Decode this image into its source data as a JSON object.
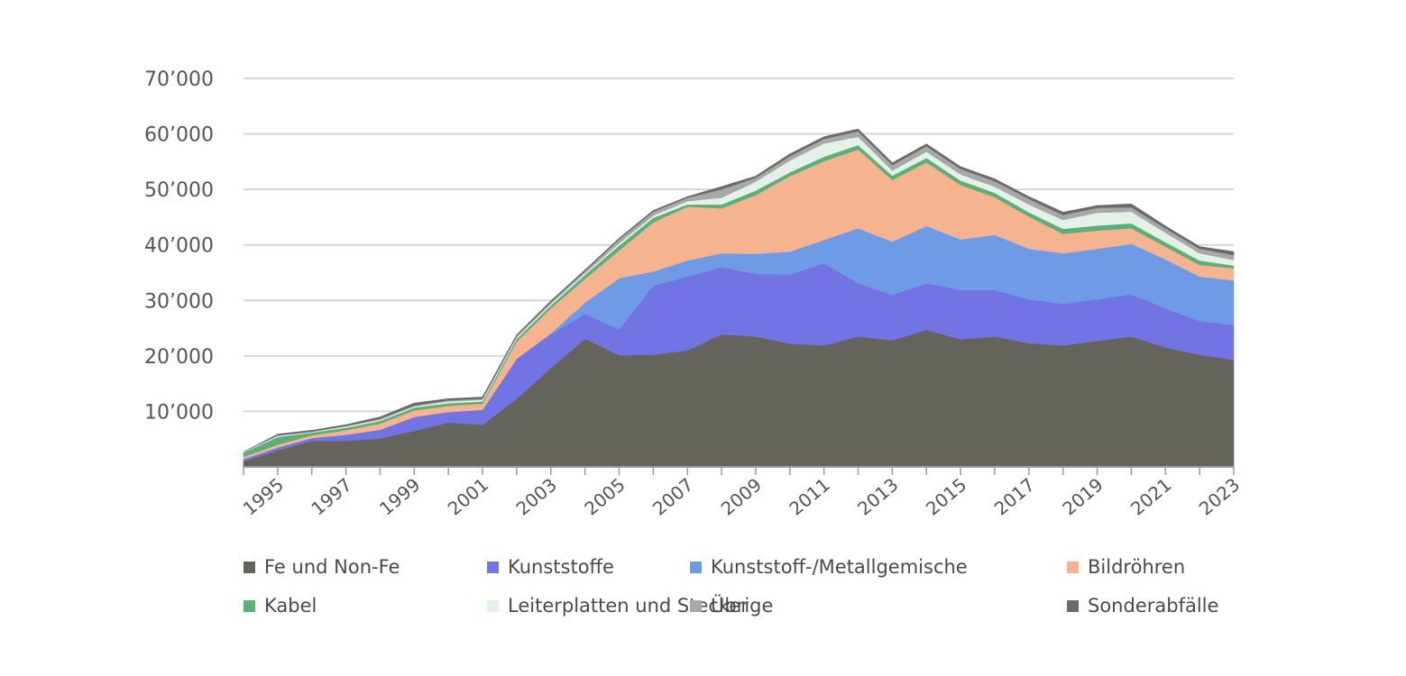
{
  "chart_data": {
    "type": "area",
    "stacked": true,
    "title": "",
    "xlabel": "",
    "ylabel": "",
    "ylim": [
      0,
      70000
    ],
    "y_ticks": [
      10000,
      20000,
      30000,
      40000,
      50000,
      60000,
      70000
    ],
    "y_tick_labels": [
      "10’000",
      "20’000",
      "30’000",
      "40’000",
      "50’000",
      "60’000",
      "70’000"
    ],
    "x_tick_labels": [
      "1995",
      "1997",
      "1999",
      "2001",
      "2003",
      "2005",
      "2007",
      "2009",
      "2011",
      "2013",
      "2015",
      "2017",
      "2019",
      "2021",
      "2023"
    ],
    "grid": "horizontal",
    "legend_position": "bottom",
    "x": [
      1994,
      1995,
      1996,
      1997,
      1998,
      1999,
      2000,
      2001,
      2002,
      2003,
      2004,
      2005,
      2006,
      2007,
      2008,
      2009,
      2010,
      2011,
      2012,
      2013,
      2014,
      2015,
      2016,
      2017,
      2018,
      2019,
      2020,
      2021,
      2022,
      2023
    ],
    "series": [
      {
        "name": "Fe und Non-Fe",
        "color": "#64635c",
        "values": [
          1000,
          3000,
          4700,
          4700,
          5100,
          6500,
          8000,
          7600,
          12300,
          17800,
          23100,
          20100,
          20200,
          21000,
          23900,
          23500,
          22200,
          21900,
          23500,
          22800,
          24700,
          23000,
          23500,
          22300,
          21900,
          22700,
          23500,
          21500,
          20200,
          19300
        ]
      },
      {
        "name": "Kunststoffe",
        "color": "#7274e4",
        "values": [
          400,
          500,
          500,
          1100,
          1600,
          2500,
          1900,
          2700,
          7200,
          6100,
          4500,
          4700,
          12500,
          13300,
          12100,
          11300,
          12500,
          14800,
          9600,
          8200,
          8400,
          8900,
          8400,
          7900,
          7500,
          7500,
          7600,
          7100,
          6100,
          6300
        ]
      },
      {
        "name": "Kunststoff-/Metallgemische",
        "color": "#6f9be6",
        "values": [
          0,
          0,
          0,
          0,
          0,
          0,
          0,
          0,
          0,
          200,
          2000,
          9200,
          2500,
          2900,
          2500,
          3600,
          4100,
          4200,
          9900,
          9600,
          10300,
          9100,
          9900,
          9100,
          9100,
          9100,
          9100,
          8800,
          8000,
          8000
        ]
      },
      {
        "name": "Bildröhren",
        "color": "#f5b38f",
        "values": [
          400,
          500,
          500,
          800,
          1100,
          1200,
          1100,
          1100,
          3100,
          4500,
          4300,
          5000,
          8900,
          9700,
          8100,
          10600,
          13600,
          14200,
          14200,
          11100,
          11500,
          9800,
          6800,
          5800,
          3500,
          3300,
          2800,
          2300,
          2100,
          2200
        ]
      },
      {
        "name": "Kabel",
        "color": "#5bb07a",
        "values": [
          800,
          1400,
          500,
          500,
          500,
          500,
          500,
          400,
          500,
          500,
          700,
          900,
          800,
          400,
          700,
          800,
          700,
          800,
          800,
          800,
          800,
          800,
          800,
          800,
          900,
          900,
          900,
          800,
          800,
          500
        ]
      },
      {
        "name": "Leiterplatten und Stecker",
        "color": "#e3f1e7",
        "values": [
          100,
          200,
          100,
          200,
          200,
          200,
          300,
          300,
          300,
          300,
          300,
          400,
          400,
          600,
          1200,
          1600,
          2100,
          2400,
          1500,
          900,
          1100,
          1100,
          1100,
          1400,
          1600,
          2300,
          2100,
          1700,
          1300,
          1000
        ]
      },
      {
        "name": "Übrige",
        "color": "#a8a8a8",
        "values": [
          0,
          100,
          100,
          100,
          200,
          200,
          200,
          200,
          200,
          300,
          400,
          700,
          700,
          600,
          1500,
          700,
          800,
          800,
          1000,
          1000,
          1000,
          1000,
          1000,
          1000,
          900,
          900,
          800,
          800,
          800,
          900
        ]
      },
      {
        "name": "Sonderabfälle",
        "color": "#6a6a6a",
        "values": [
          0,
          200,
          200,
          200,
          300,
          400,
          300,
          300,
          200,
          200,
          200,
          200,
          200,
          200,
          500,
          300,
          400,
          400,
          400,
          400,
          400,
          400,
          400,
          400,
          500,
          400,
          600,
          400,
          400,
          600
        ]
      }
    ]
  }
}
